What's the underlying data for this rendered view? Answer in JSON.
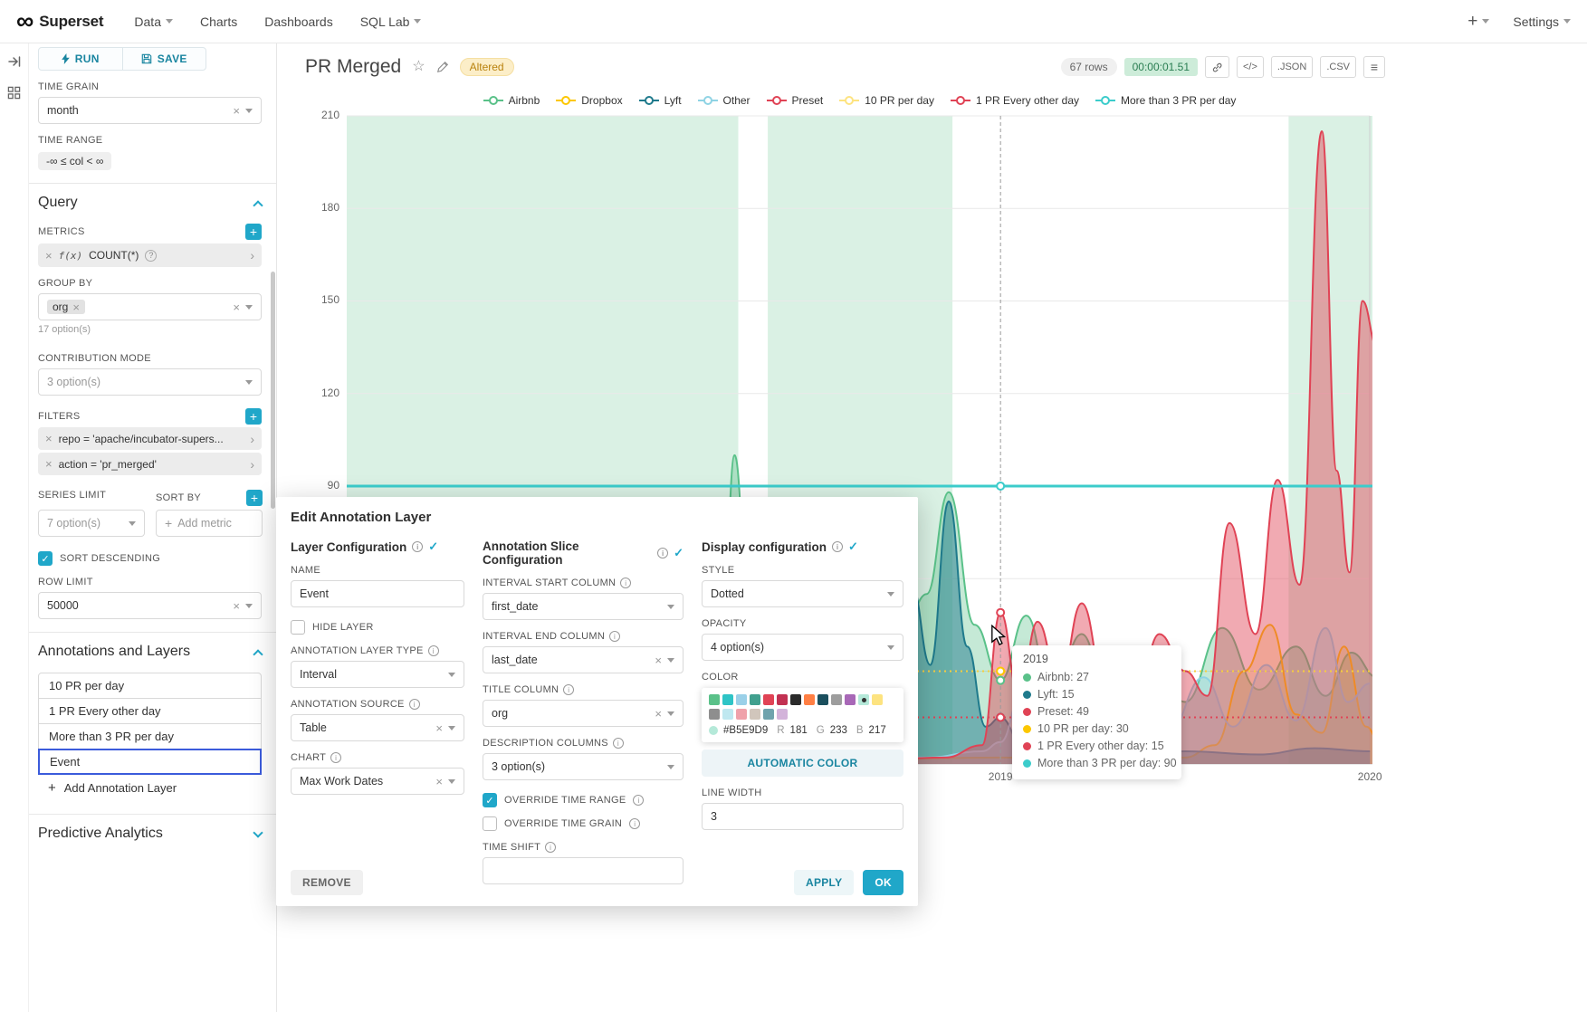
{
  "navbar": {
    "brand": "Superset",
    "menu": [
      {
        "label": "Data",
        "caret": true
      },
      {
        "label": "Charts",
        "caret": false
      },
      {
        "label": "Dashboards",
        "caret": false
      },
      {
        "label": "SQL Lab",
        "caret": true
      }
    ],
    "plus": "+",
    "settings": "Settings"
  },
  "panel": {
    "run": "RUN",
    "save": "SAVE",
    "time_grain_label": "TIME GRAIN",
    "time_grain_value": "month",
    "time_range_label": "TIME RANGE",
    "time_range_value": "-∞ ≤ col < ∞",
    "query_title": "Query",
    "metrics_label": "METRICS",
    "metric_fx": "f(x)",
    "metric_value": "COUNT(*)",
    "group_by_label": "GROUP BY",
    "group_by_tag": "org",
    "group_by_hint": "17 option(s)",
    "contribution_label": "CONTRIBUTION MODE",
    "contribution_value": "3 option(s)",
    "filters_label": "FILTERS",
    "filters": [
      "repo = 'apache/incubator-supers...",
      "action = 'pr_merged'"
    ],
    "series_limit_label": "SERIES LIMIT",
    "series_limit_value": "7 option(s)",
    "sort_by_label": "SORT BY",
    "sort_by_placeholder": "Add metric",
    "sort_descending_label": "SORT DESCENDING",
    "row_limit_label": "ROW LIMIT",
    "row_limit_value": "50000",
    "annotations_title": "Annotations and Layers",
    "annotation_layers": [
      "10 PR per day",
      "1 PR Every other day",
      "More than 3 PR per day",
      "Event"
    ],
    "selected_layer": "Event",
    "add_annotation_label": "Add Annotation Layer",
    "predictive_title": "Predictive Analytics"
  },
  "header": {
    "title": "PR Merged",
    "altered_badge": "Altered",
    "rows": "67 rows",
    "timer": "00:00:01.51",
    "json_label": ".JSON",
    "csv_label": ".CSV"
  },
  "legend": [
    {
      "label": "Airbnb",
      "color": "#5AC189"
    },
    {
      "label": "Dropbox",
      "color": "#FCC700"
    },
    {
      "label": "Lyft",
      "color": "#1F7A8C"
    },
    {
      "label": "Other",
      "color": "#8FD3E4"
    },
    {
      "label": "Preset",
      "color": "#E04355"
    },
    {
      "label": "10 PR per day",
      "color": "#FDE380"
    },
    {
      "label": "1 PR Every other day",
      "color": "#E04355"
    },
    {
      "label": "More than 3 PR per day",
      "color": "#3CCCCB"
    }
  ],
  "chart_data": {
    "type": "area",
    "title": "PR Merged",
    "x_axis": {
      "domain": [
        2017.23,
        2020.04
      ],
      "tick_years": [
        2019,
        2020
      ],
      "ticks": [
        "2019",
        "2020"
      ]
    },
    "y_axis": {
      "ticks": [
        210,
        180,
        150,
        120,
        90
      ],
      "grid_values": [
        210,
        180,
        150,
        120,
        90,
        60,
        30
      ],
      "ylim": [
        0,
        212
      ]
    },
    "band_color": "#ACE1C4",
    "interval_bands": [
      [
        2017.23,
        2018.29
      ],
      [
        2018.37,
        2018.87
      ],
      [
        2019.78,
        2020.04
      ]
    ],
    "hover_year": 2019,
    "series": [
      {
        "name": "Airbnb",
        "color": "#5AC189",
        "fill": 0.35,
        "points": [
          [
            2017.23,
            1
          ],
          [
            2017.45,
            2
          ],
          [
            2017.6,
            3
          ],
          [
            2017.75,
            2
          ],
          [
            2017.85,
            4
          ],
          [
            2017.9,
            82
          ],
          [
            2017.96,
            6
          ],
          [
            2018.05,
            4
          ],
          [
            2018.15,
            9
          ],
          [
            2018.24,
            12
          ],
          [
            2018.28,
            100
          ],
          [
            2018.33,
            10
          ],
          [
            2018.42,
            18
          ],
          [
            2018.52,
            8
          ],
          [
            2018.62,
            22
          ],
          [
            2018.72,
            35
          ],
          [
            2018.8,
            55
          ],
          [
            2018.86,
            88
          ],
          [
            2018.93,
            45
          ],
          [
            2019,
            27
          ],
          [
            2019.07,
            48
          ],
          [
            2019.14,
            22
          ],
          [
            2019.22,
            42
          ],
          [
            2019.3,
            16
          ],
          [
            2019.4,
            34
          ],
          [
            2019.5,
            20
          ],
          [
            2019.6,
            44
          ],
          [
            2019.7,
            24
          ],
          [
            2019.8,
            38
          ],
          [
            2019.88,
            22
          ],
          [
            2019.95,
            36
          ],
          [
            2020.02,
            28
          ]
        ]
      },
      {
        "name": "Dropbox",
        "color": "#FCC700",
        "fill": 0.2,
        "points": [
          [
            2017.23,
            0
          ],
          [
            2018.0,
            1
          ],
          [
            2018.5,
            1
          ],
          [
            2019.0,
            2
          ],
          [
            2019.3,
            1
          ],
          [
            2019.5,
            2
          ],
          [
            2019.58,
            6
          ],
          [
            2019.66,
            30
          ],
          [
            2019.73,
            45
          ],
          [
            2019.8,
            16
          ],
          [
            2019.87,
            10
          ],
          [
            2019.93,
            38
          ],
          [
            2019.99,
            12
          ],
          [
            2020.03,
            6
          ]
        ]
      },
      {
        "name": "Lyft",
        "color": "#1F7A8C",
        "fill": 0.5,
        "points": [
          [
            2017.23,
            0
          ],
          [
            2017.8,
            1
          ],
          [
            2018.3,
            1
          ],
          [
            2018.6,
            2
          ],
          [
            2018.7,
            6
          ],
          [
            2018.76,
            58
          ],
          [
            2018.81,
            32
          ],
          [
            2018.86,
            85
          ],
          [
            2018.91,
            38
          ],
          [
            2018.96,
            12
          ],
          [
            2019,
            15
          ],
          [
            2019.06,
            6
          ],
          [
            2019.15,
            3
          ],
          [
            2019.3,
            2
          ],
          [
            2019.5,
            4
          ],
          [
            2019.7,
            3
          ],
          [
            2019.85,
            5
          ],
          [
            2020,
            4
          ]
        ]
      },
      {
        "name": "Other",
        "color": "#8FD3E4",
        "fill": 0.35,
        "points": [
          [
            2017.23,
            0
          ],
          [
            2018.5,
            1
          ],
          [
            2018.8,
            2
          ],
          [
            2018.95,
            4
          ],
          [
            2019,
            7
          ],
          [
            2019.06,
            24
          ],
          [
            2019.13,
            12
          ],
          [
            2019.2,
            34
          ],
          [
            2019.28,
            10
          ],
          [
            2019.37,
            22
          ],
          [
            2019.45,
            9
          ],
          [
            2019.55,
            28
          ],
          [
            2019.63,
            12
          ],
          [
            2019.72,
            32
          ],
          [
            2019.8,
            14
          ],
          [
            2019.88,
            44
          ],
          [
            2019.94,
            20
          ],
          [
            2020,
            26
          ]
        ]
      },
      {
        "name": "Preset",
        "color": "#E04355",
        "fill": 0.45,
        "points": [
          [
            2017.23,
            0
          ],
          [
            2018.6,
            1
          ],
          [
            2018.85,
            2
          ],
          [
            2018.95,
            6
          ],
          [
            2019,
            49
          ],
          [
            2019.05,
            22
          ],
          [
            2019.1,
            46
          ],
          [
            2019.16,
            26
          ],
          [
            2019.22,
            52
          ],
          [
            2019.29,
            20
          ],
          [
            2019.36,
            16
          ],
          [
            2019.43,
            42
          ],
          [
            2019.5,
            30
          ],
          [
            2019.56,
            22
          ],
          [
            2019.62,
            78
          ],
          [
            2019.69,
            42
          ],
          [
            2019.75,
            92
          ],
          [
            2019.81,
            58
          ],
          [
            2019.87,
            205
          ],
          [
            2019.91,
            95
          ],
          [
            2019.945,
            62
          ],
          [
            2019.98,
            150
          ],
          [
            2020.02,
            135
          ]
        ]
      }
    ],
    "annotation_lines": [
      {
        "name": "More than 3 PR per day",
        "value": 90,
        "color": "#3CCCCB",
        "style": "solid",
        "width": 3
      },
      {
        "name": "10 PR per day",
        "value": 30,
        "color": "#F6CE3E",
        "style": "dashed",
        "width": 2
      },
      {
        "name": "1 PR Every other day",
        "value": 15,
        "color": "#E04355",
        "style": "dashed",
        "width": 2
      }
    ]
  },
  "tooltip": {
    "title": "2019",
    "items": [
      {
        "label": "Airbnb",
        "value": "27",
        "color": "#5AC189"
      },
      {
        "label": "Lyft",
        "value": "15",
        "color": "#1F7A8C"
      },
      {
        "label": "Preset",
        "value": "49",
        "color": "#E04355"
      },
      {
        "label": "10 PR per day",
        "value": "30",
        "color": "#FCC700"
      },
      {
        "label": "1 PR Every other day",
        "value": "15",
        "color": "#E04355"
      },
      {
        "label": "More than 3 PR per day",
        "value": "90",
        "color": "#3CCCCB"
      }
    ]
  },
  "modal": {
    "title": "Edit Annotation Layer",
    "layer_config": {
      "title": "Layer Configuration",
      "name_label": "NAME",
      "name_value": "Event",
      "hide_layer_label": "HIDE LAYER",
      "type_label": "ANNOTATION LAYER TYPE",
      "type_value": "Interval",
      "source_label": "ANNOTATION SOURCE",
      "source_value": "Table",
      "chart_label": "CHART",
      "chart_value": "Max Work Dates"
    },
    "slice_config": {
      "title": "Annotation Slice Configuration",
      "interval_start_label": "INTERVAL START COLUMN",
      "interval_start_value": "first_date",
      "interval_end_label": "INTERVAL END COLUMN",
      "interval_end_value": "last_date",
      "title_column_label": "TITLE COLUMN",
      "title_column_value": "org",
      "description_columns_label": "DESCRIPTION COLUMNS",
      "description_columns_value": "3 option(s)",
      "override_time_range_label": "OVERRIDE TIME RANGE",
      "override_time_grain_label": "OVERRIDE TIME GRAIN",
      "time_shift_label": "TIME SHIFT"
    },
    "display_config": {
      "title": "Display configuration",
      "style_label": "STYLE",
      "style_value": "Dotted",
      "opacity_label": "OPACITY",
      "opacity_value": "4 option(s)",
      "color_label": "COLOR",
      "palette_row1": [
        "#5AC189",
        "#2EC4C6",
        "#9AD0E8",
        "#41A08E",
        "#E04355",
        "#C23152",
        "#2B2B2B",
        "#FF7F44",
        "#1B4F5E",
        "#9D9D9D",
        "#A868B7",
        "#B5E9D9",
        "#FDE380"
      ],
      "palette_row2": [
        "#8E8E8E",
        "#BFE8F0",
        "#EFA1AA",
        "#D1C6BC",
        "#6FA3AD",
        "#D3B3DA"
      ],
      "selected_swatch": "#B5E9D9",
      "selected_color": "#B5E9D9",
      "r_label": "R",
      "r_value": "181",
      "g_label": "G",
      "g_value": "233",
      "b_label": "B",
      "b_value": "217",
      "automatic_color_label": "AUTOMATIC COLOR",
      "line_width_label": "LINE WIDTH",
      "line_width_value": "3"
    },
    "remove_label": "REMOVE",
    "apply_label": "APPLY",
    "ok_label": "OK"
  },
  "colors": {
    "accent": "#20A7C9"
  }
}
